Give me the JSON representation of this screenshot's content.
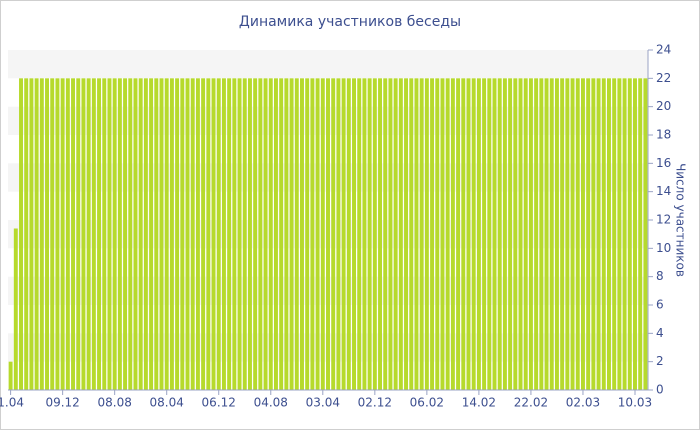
{
  "chart_data": {
    "type": "bar",
    "title": "Динамика участников беседы",
    "y_label": "Число участников",
    "categories": [
      "1.04",
      null,
      null,
      null,
      null,
      null,
      null,
      null,
      null,
      null,
      "09.12",
      null,
      null,
      null,
      null,
      null,
      null,
      null,
      null,
      null,
      "08.08",
      null,
      null,
      null,
      null,
      null,
      null,
      null,
      null,
      null,
      "08.04",
      null,
      null,
      null,
      null,
      null,
      null,
      null,
      null,
      null,
      "06.12",
      null,
      null,
      null,
      null,
      null,
      null,
      null,
      null,
      null,
      "04.08",
      null,
      null,
      null,
      null,
      null,
      null,
      null,
      null,
      null,
      "03.04",
      null,
      null,
      null,
      null,
      null,
      null,
      null,
      null,
      null,
      "02.12",
      null,
      null,
      null,
      null,
      null,
      null,
      null,
      null,
      null,
      "06.02",
      null,
      null,
      null,
      null,
      null,
      null,
      null,
      null,
      null,
      "14.02",
      null,
      null,
      null,
      null,
      null,
      null,
      null,
      null,
      null,
      "22.02",
      null,
      null,
      null,
      null,
      null,
      null,
      null,
      null,
      null,
      "02.03",
      null,
      null,
      null,
      null,
      null,
      null,
      null,
      null,
      null,
      "10.03",
      null,
      null
    ],
    "values": [
      2,
      11.4,
      22,
      22,
      22,
      22,
      22,
      22,
      22,
      22,
      22,
      22,
      22,
      22,
      22,
      22,
      22,
      22,
      22,
      22,
      22,
      22,
      22,
      22,
      22,
      22,
      22,
      22,
      22,
      22,
      22,
      22,
      22,
      22,
      22,
      22,
      22,
      22,
      22,
      22,
      22,
      22,
      22,
      22,
      22,
      22,
      22,
      22,
      22,
      22,
      22,
      22,
      22,
      22,
      22,
      22,
      22,
      22,
      22,
      22,
      22,
      22,
      22,
      22,
      22,
      22,
      22,
      22,
      22,
      22,
      22,
      22,
      22,
      22,
      22,
      22,
      22,
      22,
      22,
      22,
      22,
      22,
      22,
      22,
      22,
      22,
      22,
      22,
      22,
      22,
      22,
      22,
      22,
      22,
      22,
      22,
      22,
      22,
      22,
      22,
      22,
      22,
      22,
      22,
      22,
      22,
      22,
      22,
      22,
      22,
      22,
      22,
      22,
      22,
      22,
      22,
      22,
      22,
      22,
      22,
      22,
      22,
      22
    ],
    "color": "#b6da2c",
    "ylim": [
      0,
      24
    ],
    "yticks": [
      0,
      2,
      4,
      6,
      8,
      10,
      12,
      14,
      16,
      18,
      20,
      22,
      24
    ],
    "y_axis_side": "right"
  }
}
